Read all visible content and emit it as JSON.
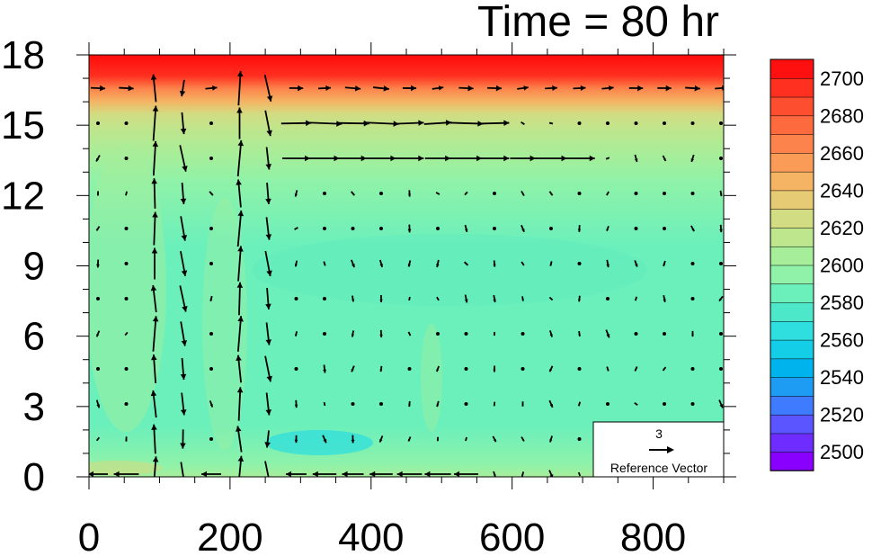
{
  "chart_data": {
    "type": "heatmap",
    "title": "Time = 80 hr",
    "xlabel": "",
    "ylabel": "",
    "xlim": [
      0,
      900
    ],
    "ylim": [
      0,
      18
    ],
    "x_ticks": [
      0,
      200,
      400,
      600,
      800
    ],
    "y_ticks": [
      0,
      3,
      6,
      9,
      12,
      15,
      18
    ],
    "colorbar": {
      "levels": [
        2490,
        2500,
        2510,
        2520,
        2530,
        2540,
        2550,
        2560,
        2570,
        2580,
        2590,
        2600,
        2610,
        2620,
        2630,
        2640,
        2650,
        2660,
        2670,
        2680,
        2690,
        2700,
        2710
      ],
      "labels": [
        2500,
        2520,
        2540,
        2560,
        2580,
        2600,
        2620,
        2640,
        2660,
        2680,
        2700
      ],
      "colors": [
        "#8a00ff",
        "#6e2cff",
        "#5a55ff",
        "#3f7bff",
        "#1e9cf4",
        "#00b3ec",
        "#14cde6",
        "#2fdede",
        "#4ce8c9",
        "#6cf0bb",
        "#8ff2a8",
        "#a6ee9a",
        "#bde68d",
        "#d2dc82",
        "#e6ca74",
        "#f5b464",
        "#fa9c58",
        "#fc844c",
        "#fd6a3e",
        "#fe4e30",
        "#ff3020",
        "#ff1010"
      ]
    },
    "field_description": "colored height field: ~2585-2600 in the lower/middle domain, increasing through 2620-2650 near 15-16 km to 2700+ above 17 km",
    "vector_reference": {
      "magnitude": 3,
      "label": "Reference Vector"
    }
  }
}
